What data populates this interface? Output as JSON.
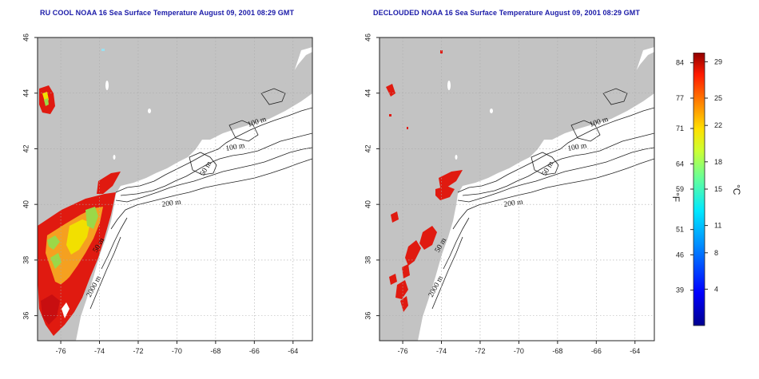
{
  "left_panel": {
    "title": "RU COOL NOAA 16 Sea Surface Temperature August 09, 2001 08:29 GMT",
    "contour_labels": [
      "100 m",
      "100 m",
      "50 m",
      "200 m",
      "50 m",
      "2000 m"
    ]
  },
  "right_panel": {
    "title": "DECLOUDED NOAA 16 Sea Surface Temperature August 09, 2001 08:29 GMT",
    "contour_labels": [
      "100 m",
      "100 m",
      "50 m",
      "200 m",
      "50 m",
      "2000 m"
    ]
  },
  "axes": {
    "lon_ticks": [
      "-76",
      "-74",
      "-72",
      "-70",
      "-68",
      "-66",
      "-64"
    ],
    "lat_ticks": [
      "36",
      "38",
      "40",
      "42",
      "44",
      "46"
    ],
    "lon_range": [
      -77.2,
      -63.0
    ],
    "lat_range": [
      35.1,
      46.0
    ],
    "grid": "dotted"
  },
  "colorbar": {
    "fahrenheit_ticks": [
      "84",
      "77",
      "71",
      "64",
      "59",
      "51",
      "46",
      "39"
    ],
    "celsius_ticks": [
      "29",
      "25",
      "22",
      "18",
      "15",
      "11",
      "8",
      "4"
    ],
    "fahrenheit_unit": "°F",
    "celsius_unit": "°C",
    "celsius_range": [
      0,
      30
    ]
  },
  "colors": {
    "land": "#c3c3c3",
    "ocean": "#ffffff",
    "title": "#1a1aa8",
    "sst_warm": "#e01a10",
    "sst_mid": "#f5a020",
    "sst_cool": "#88d848"
  }
}
